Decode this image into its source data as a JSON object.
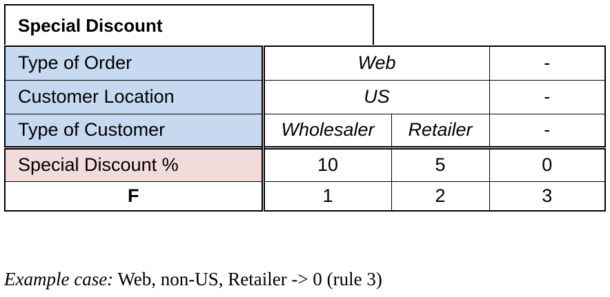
{
  "table": {
    "title": "Special Discount",
    "conditions": [
      {
        "label": "Type of Order",
        "cells": [
          "Web",
          "-"
        ]
      },
      {
        "label": "Customer Location",
        "cells": [
          "US",
          "-"
        ]
      },
      {
        "label": "Type of Customer",
        "cells": [
          "Wholesaler",
          "Retailer",
          "-"
        ]
      }
    ],
    "action": {
      "label": "Special Discount %",
      "values": [
        "10",
        "5",
        "0"
      ]
    },
    "rule_row": {
      "label": "F",
      "values": [
        "1",
        "2",
        "3"
      ]
    }
  },
  "example": {
    "prefix": "Example case:",
    "text": " Web, non-US, Retailer -> 0 (rule 3)"
  }
}
